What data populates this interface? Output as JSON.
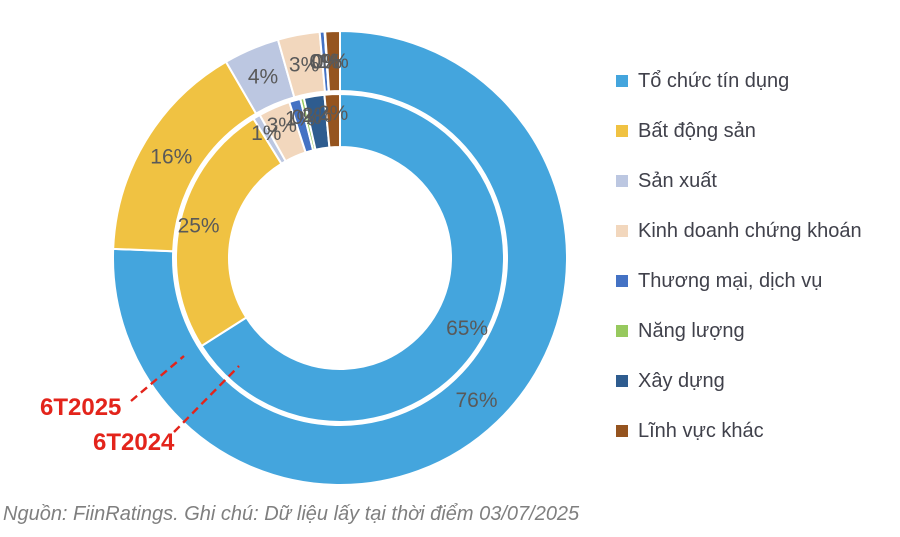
{
  "chart_data": {
    "type": "donut",
    "title": "",
    "legend_position": "right",
    "categories": [
      "Tổ chức tín dụng",
      "Bất động sản",
      "Sản xuất",
      "Kinh doanh chứng khoán",
      "Thương mại, dịch vụ",
      "Năng lượng",
      "Xây dựng",
      "Lĩnh vực khác"
    ],
    "colors": [
      "#44A5DD",
      "#F0C242",
      "#BCC7E1",
      "#F2D7BD",
      "#4472C4",
      "#97C95E",
      "#2E5C8F",
      "#95541F"
    ],
    "series": [
      {
        "name": "6T2024",
        "ring": "inner",
        "values": [
          65.3,
          24.9,
          0.7,
          3.1,
          1.1,
          0.35,
          2.0,
          1.5
        ],
        "labels": [
          "65%",
          "25%",
          "1%",
          "3%",
          "1%",
          "0%",
          "2%",
          "2%"
        ]
      },
      {
        "name": "6T2025",
        "ring": "outer",
        "values": [
          76.2,
          16.1,
          4.0,
          3.0,
          0.35,
          0.02,
          0.02,
          1.05
        ],
        "labels": [
          "76%",
          "16%",
          "4%",
          "3%",
          "0%",
          "0%",
          "0%",
          "1%"
        ]
      }
    ]
  },
  "annotations": {
    "outer": "6T2025",
    "inner": "6T2024",
    "callout_color": "#E3241B"
  },
  "footer": {
    "note": "Nguồn: FiinRatings. Ghi chú: Dữ liệu lấy tại thời điểm 03/07/2025"
  }
}
